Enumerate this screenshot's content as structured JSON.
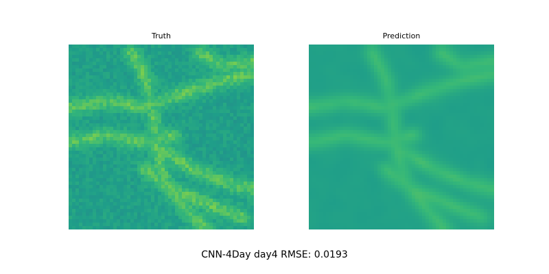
{
  "chart_data": [
    {
      "type": "heatmap",
      "title": "Truth",
      "colormap": "viridis",
      "axes_visible": false,
      "grid": false,
      "value_range": [
        0.3,
        0.95
      ]
    },
    {
      "type": "heatmap",
      "title": "Prediction",
      "colormap": "viridis",
      "axes_visible": false,
      "grid": false,
      "value_range": [
        0.3,
        0.95
      ]
    }
  ],
  "caption": "CNN-4Day day4 RMSE: 0.0193"
}
